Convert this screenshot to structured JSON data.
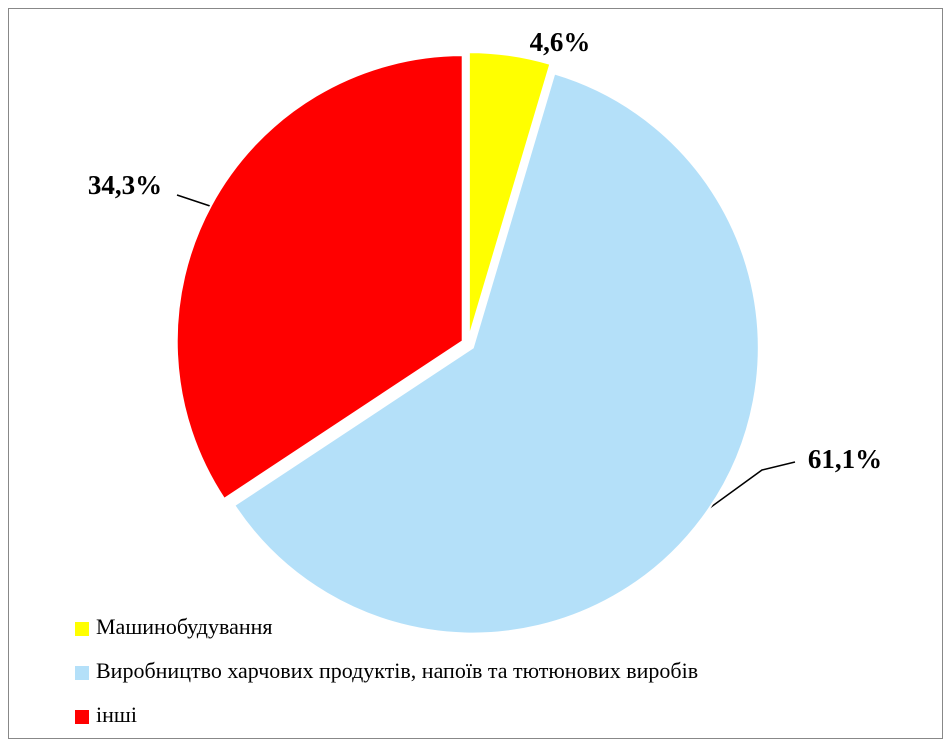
{
  "chart_data": {
    "type": "pie",
    "categories": [
      "Машинобудування",
      "Виробництво харчових продуктів, напоїв та тютюнових виробів",
      "інші"
    ],
    "values": [
      4.6,
      61.1,
      34.3
    ],
    "value_labels": [
      "4,6%",
      "61,1%",
      "34,3%"
    ],
    "colors": [
      "#ffff00",
      "#b4e0f9",
      "#ff0000"
    ],
    "legend": "bottom-left"
  }
}
